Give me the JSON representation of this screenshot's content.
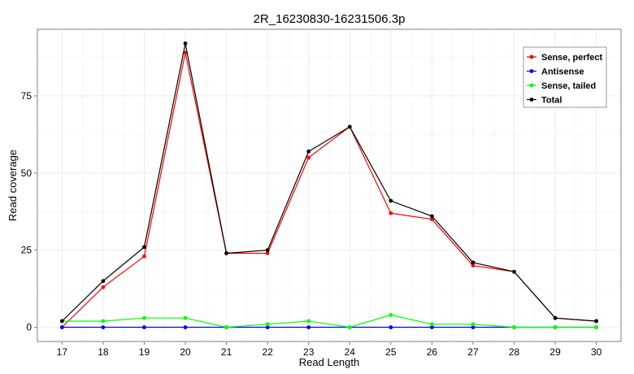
{
  "chart_data": {
    "type": "line",
    "title": "2R_16230830-16231506.3p",
    "xlabel": "Read Length",
    "ylabel": "Read coverage",
    "x": [
      17,
      18,
      19,
      20,
      21,
      22,
      23,
      24,
      25,
      26,
      27,
      28,
      29,
      30
    ],
    "xlim": [
      16.4,
      30.6
    ],
    "ylim": [
      -4.6,
      96.6
    ],
    "yticks": [
      0,
      25,
      50,
      75
    ],
    "grid": true,
    "legend_position": "top-right",
    "series": [
      {
        "name": "Sense, perfect",
        "color": "#ff0000",
        "values": [
          0,
          13,
          23,
          89,
          24,
          24,
          55,
          65,
          37,
          35,
          20,
          18,
          3,
          2
        ]
      },
      {
        "name": "Antisense",
        "color": "#0000ff",
        "values": [
          0,
          0,
          0,
          0,
          0,
          0,
          0,
          0,
          0,
          0,
          0,
          0,
          0,
          0
        ]
      },
      {
        "name": "Sense, tailed",
        "color": "#00ff00",
        "values": [
          2,
          2,
          3,
          3,
          0,
          1,
          2,
          0,
          4,
          1,
          1,
          0,
          0,
          0
        ]
      },
      {
        "name": "Total",
        "color": "#000000",
        "values": [
          2,
          15,
          26,
          92,
          24,
          25,
          57,
          65,
          41,
          36,
          21,
          18,
          3,
          2
        ]
      }
    ]
  }
}
